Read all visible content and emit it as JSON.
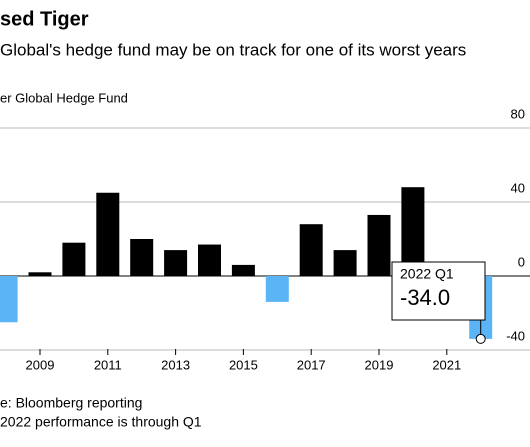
{
  "chart_data": {
    "type": "bar",
    "title": "sed Tiger",
    "subtitle": "Global's hedge fund may be on track for one of its worst years",
    "legend_label": "er Global Hedge Fund",
    "source": "e: Bloomberg reporting",
    "note": "2022 performance is through Q1",
    "annotation": "2022 Q1",
    "categories": [
      null,
      "2009",
      null,
      "2011",
      null,
      "2013",
      null,
      "2015",
      null,
      "2017",
      null,
      "2019",
      null,
      "2021",
      null
    ],
    "values": [
      -25,
      2,
      18,
      45,
      20,
      14,
      17,
      6,
      -14,
      28,
      14,
      33,
      48,
      null,
      -34
    ],
    "value_labels": [
      null,
      null,
      null,
      null,
      null,
      null,
      null,
      null,
      null,
      null,
      null,
      null,
      null,
      null,
      "-34.0"
    ],
    "positive_color": "#000000",
    "negative_color": "#5ab4f5",
    "ylim": [
      -50,
      90
    ],
    "yticks": [
      80,
      40,
      0,
      -40
    ],
    "grid": true
  }
}
